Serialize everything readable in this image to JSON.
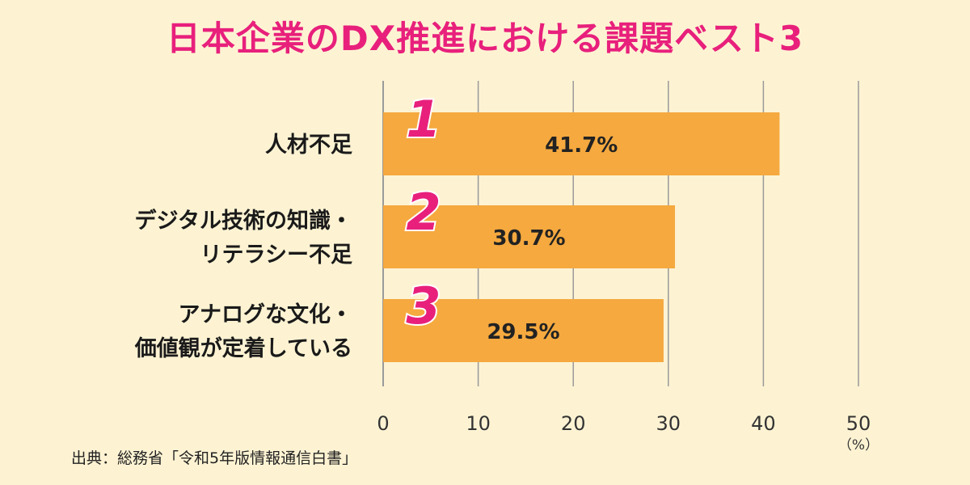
{
  "title": "日本企業のDX推進における課題ベスト3",
  "source": "出典：総務省「令和5年版情報通信白書」",
  "chart_data": {
    "type": "bar",
    "orientation": "horizontal",
    "categories": [
      [
        "人材不足"
      ],
      [
        "デジタル技術の知識・",
        "リテラシー不足"
      ],
      [
        "アナログな文化・",
        "価値観が定着している"
      ]
    ],
    "ranks": [
      "1",
      "2",
      "3"
    ],
    "values": [
      41.7,
      30.7,
      29.5
    ],
    "value_labels": [
      "41.7%",
      "30.7%",
      "29.5%"
    ],
    "xlim": [
      0,
      50
    ],
    "xticks": [
      0,
      10,
      20,
      30,
      40,
      50
    ],
    "unit_label": "（%）",
    "grid": true,
    "colors": {
      "bar": "#f5a93f",
      "rank": "#e8207c",
      "grid": "#9a9a9a",
      "title": "#e8207c"
    }
  }
}
